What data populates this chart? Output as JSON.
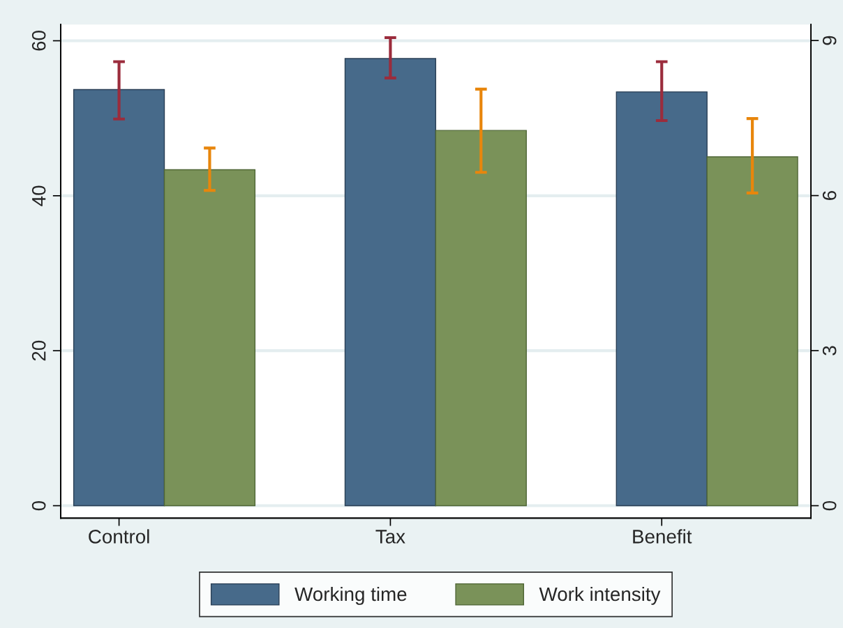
{
  "chart_data": {
    "type": "bar",
    "categories": [
      "Control",
      "Tax",
      "Benefit"
    ],
    "series": [
      {
        "name": "Working time",
        "color": "#476a8a",
        "values": [
          53.7,
          57.7,
          53.4
        ],
        "errors": [
          [
            49.9,
            57.3
          ],
          [
            55.2,
            60.4
          ],
          [
            49.7,
            57.3
          ]
        ]
      },
      {
        "name": "Work intensity",
        "color": "#7a9259",
        "axis": "y2",
        "values": [
          6.5,
          7.26,
          6.75
        ],
        "errors": [
          [
            6.1,
            6.92
          ],
          [
            6.45,
            8.06
          ],
          [
            6.05,
            7.49
          ]
        ]
      }
    ],
    "ylim": [
      -1.6,
      62.1
    ],
    "yticks": [
      0,
      20,
      40,
      60
    ],
    "y2lim": [
      -0.24,
      9.31
    ],
    "y2ticks": [
      0,
      3,
      6,
      9
    ],
    "grid": "y",
    "legend": "bottom"
  }
}
